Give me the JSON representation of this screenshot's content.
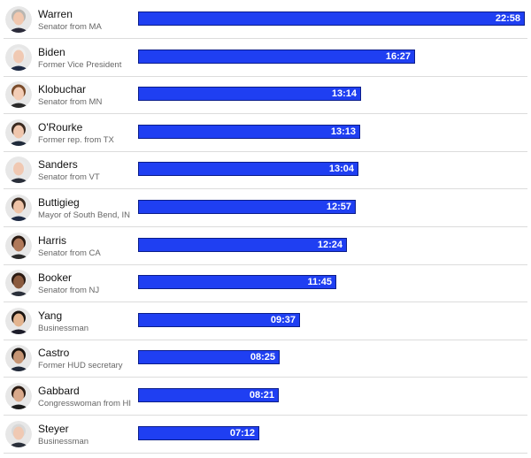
{
  "chart_data": {
    "type": "bar",
    "orientation": "horizontal",
    "unit": "minutes:seconds",
    "xlim": [
      0,
      22.9667
    ],
    "categories": [
      "Warren",
      "Biden",
      "Klobuchar",
      "O'Rourke",
      "Sanders",
      "Buttigieg",
      "Harris",
      "Booker",
      "Yang",
      "Castro",
      "Gabbard",
      "Steyer"
    ],
    "subtitles": [
      "Senator from MA",
      "Former Vice President",
      "Senator from MN",
      "Former rep. from TX",
      "Senator from VT",
      "Mayor of South Bend, IN",
      "Senator from CA",
      "Senator from NJ",
      "Businessman",
      "Former HUD secretary",
      "Congresswoman from HI",
      "Businessman"
    ],
    "labels": [
      "22:58",
      "16:27",
      "13:14",
      "13:13",
      "13:04",
      "12:57",
      "12:24",
      "11:45",
      "09:37",
      "08:25",
      "08:21",
      "07:12"
    ],
    "values": [
      22.9667,
      16.45,
      13.2333,
      13.2167,
      13.0667,
      12.95,
      12.4,
      11.75,
      9.6167,
      8.4167,
      8.35,
      7.2
    ],
    "bar_color": "#1f3ff2",
    "grid": false,
    "legend": "none"
  },
  "colors": {
    "bar": "#1f3ff2",
    "bar_border": "#0b1d8a",
    "label": "#ffffff",
    "divider": "#dcdcdc"
  },
  "avatars": [
    {
      "skin": "#f1c7ae",
      "hair": "#b9b6b1",
      "shirt": "#2b2b3a"
    },
    {
      "skin": "#f0c9b3",
      "hair": "#eeeeee",
      "shirt": "#1e2a44"
    },
    {
      "skin": "#f3cdb6",
      "hair": "#7a4b2a",
      "shirt": "#2a2a2a"
    },
    {
      "skin": "#efc6ad",
      "hair": "#3a2a20",
      "shirt": "#1f2a3a"
    },
    {
      "skin": "#f0c8b2",
      "hair": "#e9e9e9",
      "shirt": "#2a2f3a"
    },
    {
      "skin": "#eec3a7",
      "hair": "#3b2b20",
      "shirt": "#1d2a44"
    },
    {
      "skin": "#b0795a",
      "hair": "#2a1a12",
      "shirt": "#2a2a2a"
    },
    {
      "skin": "#8a5a3e",
      "hair": "#2a1a12",
      "shirt": "#2a2f3a"
    },
    {
      "skin": "#e3b48f",
      "hair": "#1a1410",
      "shirt": "#1d1d2a"
    },
    {
      "skin": "#c69574",
      "hair": "#1a1410",
      "shirt": "#202838"
    },
    {
      "skin": "#d9a98b",
      "hair": "#2a1a12",
      "shirt": "#1a1a1a"
    },
    {
      "skin": "#f0c9b3",
      "hair": "#d8d8d8",
      "shirt": "#2a2f3a"
    }
  ]
}
